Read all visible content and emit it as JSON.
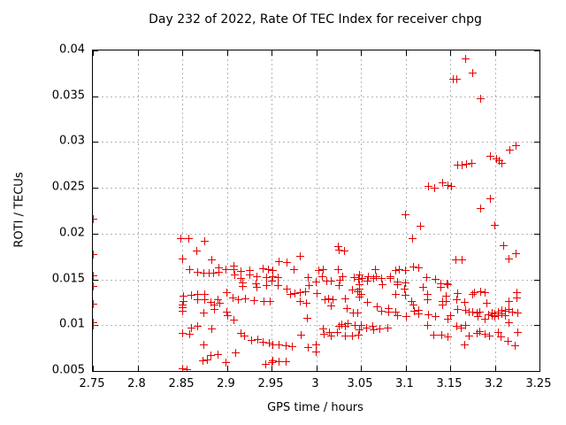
{
  "page": {
    "background": "#ffffff",
    "text_color": "#000000"
  },
  "chart_data": {
    "type": "scatter",
    "title": "Day 232 of 2022, Rate Of TEC Index for receiver chpg",
    "xlabel": "GPS time / hours",
    "ylabel": "ROTI / TECUs",
    "xlim": [
      2.75,
      3.25
    ],
    "ylim": [
      0.005,
      0.04
    ],
    "x_ticks": [
      2.75,
      2.8,
      2.85,
      2.9,
      2.95,
      3.0,
      3.05,
      3.1,
      3.15,
      3.2,
      3.25
    ],
    "x_tick_labels": [
      "2.75",
      "2.8",
      "2.85",
      "2.9",
      "2.95",
      "3",
      "3.05",
      "3.1",
      "3.15",
      "3.2",
      "3.25"
    ],
    "y_ticks": [
      0.005,
      0.01,
      0.015,
      0.02,
      0.025,
      0.03,
      0.035,
      0.04
    ],
    "y_tick_labels": [
      "0.005",
      "0.01",
      "0.015",
      "0.02",
      "0.025",
      "0.03",
      "0.035",
      "0.04"
    ],
    "grid": true,
    "legend": "none",
    "marker": "plus",
    "marker_color": "#e60000",
    "grid_color": "#b4b4b4",
    "series": [
      {
        "name": "ROTI",
        "points": [
          [
            2.75,
            0.0216
          ],
          [
            2.75,
            0.0177
          ],
          [
            2.75,
            0.0154
          ],
          [
            2.75,
            0.0142
          ],
          [
            2.75,
            0.0123
          ],
          [
            2.75,
            0.0103
          ],
          [
            2.75,
            0.01
          ],
          [
            2.849,
            0.0195
          ],
          [
            2.857,
            0.0195
          ],
          [
            2.875,
            0.0192
          ],
          [
            2.866,
            0.0181
          ],
          [
            2.85,
            0.0172
          ],
          [
            2.883,
            0.0171
          ],
          [
            2.858,
            0.0161
          ],
          [
            2.867,
            0.0158
          ],
          [
            2.874,
            0.0157
          ],
          [
            2.88,
            0.0157
          ],
          [
            2.885,
            0.0157
          ],
          [
            2.891,
            0.0163
          ],
          [
            2.891,
            0.0158
          ],
          [
            2.899,
            0.0161
          ],
          [
            2.908,
            0.0165
          ],
          [
            2.908,
            0.0161
          ],
          [
            2.909,
            0.0155
          ],
          [
            2.916,
            0.0159
          ],
          [
            2.926,
            0.016
          ],
          [
            2.926,
            0.0155
          ],
          [
            2.934,
            0.0153
          ],
          [
            2.941,
            0.0162
          ],
          [
            2.947,
            0.0161
          ],
          [
            2.945,
            0.0152
          ],
          [
            2.916,
            0.0151
          ],
          [
            2.918,
            0.0146
          ],
          [
            2.918,
            0.0142
          ],
          [
            2.933,
            0.0145
          ],
          [
            2.934,
            0.0141
          ],
          [
            2.945,
            0.0143
          ],
          [
            2.851,
            0.0132
          ],
          [
            2.851,
            0.0126
          ],
          [
            2.85,
            0.0122
          ],
          [
            2.85,
            0.0119
          ],
          [
            2.85,
            0.0115
          ],
          [
            2.86,
            0.0133
          ],
          [
            2.867,
            0.0134
          ],
          [
            2.875,
            0.0134
          ],
          [
            2.867,
            0.0128
          ],
          [
            2.875,
            0.0128
          ],
          [
            2.882,
            0.0125
          ],
          [
            2.89,
            0.0128
          ],
          [
            2.892,
            0.0124
          ],
          [
            2.9,
            0.0136
          ],
          [
            2.907,
            0.013
          ],
          [
            2.913,
            0.0128
          ],
          [
            2.921,
            0.0129
          ],
          [
            2.931,
            0.0127
          ],
          [
            2.942,
            0.0126
          ],
          [
            2.949,
            0.0126
          ],
          [
            2.874,
            0.0113
          ],
          [
            2.886,
            0.0117
          ],
          [
            2.886,
            0.0122
          ],
          [
            2.9,
            0.0114
          ],
          [
            2.901,
            0.011
          ],
          [
            2.908,
            0.0106
          ],
          [
            2.86,
            0.0097
          ],
          [
            2.867,
            0.0099
          ],
          [
            2.85,
            0.0091
          ],
          [
            2.858,
            0.009
          ],
          [
            2.883,
            0.0096
          ],
          [
            2.916,
            0.0091
          ],
          [
            2.92,
            0.0088
          ],
          [
            2.928,
            0.0083
          ],
          [
            2.935,
            0.0084
          ],
          [
            2.941,
            0.0081
          ],
          [
            2.948,
            0.008
          ],
          [
            2.874,
            0.0079
          ],
          [
            2.882,
            0.0067
          ],
          [
            2.89,
            0.0068
          ],
          [
            2.878,
            0.0062
          ],
          [
            2.873,
            0.0061
          ],
          [
            2.899,
            0.0059
          ],
          [
            2.91,
            0.007
          ],
          [
            2.85,
            0.0052
          ],
          [
            2.855,
            0.0051
          ],
          [
            2.944,
            0.0057
          ],
          [
            2.95,
            0.0059
          ],
          [
            2.982,
            0.0175
          ],
          [
            2.958,
            0.0169
          ],
          [
            2.967,
            0.0168
          ],
          [
            2.975,
            0.0161
          ],
          [
            2.951,
            0.016
          ],
          [
            2.951,
            0.0153
          ],
          [
            2.95,
            0.0148
          ],
          [
            2.957,
            0.0152
          ],
          [
            2.957,
            0.0143
          ],
          [
            2.967,
            0.0139
          ],
          [
            2.971,
            0.0134
          ],
          [
            2.976,
            0.0135
          ],
          [
            2.982,
            0.0136
          ],
          [
            2.988,
            0.0137
          ],
          [
            2.982,
            0.0126
          ],
          [
            2.989,
            0.0124
          ],
          [
            2.991,
            0.0152
          ],
          [
            2.992,
            0.0143
          ],
          [
            3.0,
            0.0147
          ],
          [
            3.001,
            0.0135
          ],
          [
            3.003,
            0.016
          ],
          [
            3.008,
            0.0161
          ],
          [
            3.007,
            0.0153
          ],
          [
            3.012,
            0.0148
          ],
          [
            3.01,
            0.0128
          ],
          [
            3.014,
            0.0129
          ],
          [
            3.017,
            0.0148
          ],
          [
            3.017,
            0.0121
          ],
          [
            3.019,
            0.0128
          ],
          [
            3.025,
            0.0161
          ],
          [
            3.026,
            0.0143
          ],
          [
            3.027,
            0.0149
          ],
          [
            3.03,
            0.0153
          ],
          [
            3.033,
            0.0129
          ],
          [
            3.035,
            0.0118
          ],
          [
            3.041,
            0.0138
          ],
          [
            3.043,
            0.0152
          ],
          [
            3.047,
            0.0137
          ],
          [
            3.048,
            0.015
          ],
          [
            3.051,
            0.0151
          ],
          [
            3.042,
            0.0113
          ],
          [
            3.047,
            0.0113
          ],
          [
            2.99,
            0.0108
          ],
          [
            2.983,
            0.0089
          ],
          [
            2.951,
            0.0079
          ],
          [
            2.958,
            0.0079
          ],
          [
            2.966,
            0.0078
          ],
          [
            2.973,
            0.0077
          ],
          [
            2.991,
            0.0076
          ],
          [
            3.0,
            0.0079
          ],
          [
            3.0,
            0.0071
          ],
          [
            2.951,
            0.0061
          ],
          [
            2.958,
            0.006
          ],
          [
            2.966,
            0.006
          ],
          [
            3.008,
            0.0096
          ],
          [
            3.009,
            0.009
          ],
          [
            3.015,
            0.0092
          ],
          [
            3.017,
            0.0088
          ],
          [
            3.024,
            0.0092
          ],
          [
            3.026,
            0.0099
          ],
          [
            3.033,
            0.0099
          ],
          [
            3.033,
            0.0088
          ],
          [
            3.041,
            0.0088
          ],
          [
            3.048,
            0.0089
          ],
          [
            3.029,
            0.0101
          ],
          [
            3.036,
            0.0102
          ],
          [
            3.044,
            0.01
          ],
          [
            3.025,
            0.0186
          ],
          [
            3.026,
            0.0182
          ],
          [
            3.032,
            0.0181
          ],
          [
            3.066,
            0.0161
          ],
          [
            3.089,
            0.016
          ],
          [
            3.093,
            0.0161
          ],
          [
            3.1,
            0.016
          ],
          [
            3.109,
            0.0164
          ],
          [
            3.115,
            0.0163
          ],
          [
            3.049,
            0.0155
          ],
          [
            3.058,
            0.0153
          ],
          [
            3.057,
            0.0148
          ],
          [
            3.064,
            0.0151
          ],
          [
            3.067,
            0.0153
          ],
          [
            3.073,
            0.0151
          ],
          [
            3.074,
            0.0144
          ],
          [
            3.083,
            0.0153
          ],
          [
            3.083,
            0.0151
          ],
          [
            3.091,
            0.0147
          ],
          [
            3.091,
            0.0144
          ],
          [
            3.1,
            0.0146
          ],
          [
            3.099,
            0.0139
          ],
          [
            3.049,
            0.0144
          ],
          [
            3.049,
            0.0139
          ],
          [
            3.05,
            0.0134
          ],
          [
            3.057,
            0.0125
          ],
          [
            3.068,
            0.012
          ],
          [
            3.073,
            0.0115
          ],
          [
            3.081,
            0.0118
          ],
          [
            3.081,
            0.0114
          ],
          [
            3.089,
            0.0134
          ],
          [
            3.089,
            0.0114
          ],
          [
            3.091,
            0.011
          ],
          [
            3.1,
            0.0133
          ],
          [
            3.101,
            0.0109
          ],
          [
            3.107,
            0.0126
          ],
          [
            3.109,
            0.0122
          ],
          [
            3.11,
            0.0115
          ],
          [
            3.115,
            0.0116
          ],
          [
            3.115,
            0.0112
          ],
          [
            3.12,
            0.0141
          ],
          [
            3.124,
            0.0152
          ],
          [
            3.125,
            0.0134
          ],
          [
            3.125,
            0.0128
          ],
          [
            3.126,
            0.0111
          ],
          [
            3.125,
            0.01
          ],
          [
            3.134,
            0.015
          ],
          [
            3.134,
            0.0109
          ],
          [
            3.132,
            0.0089
          ],
          [
            3.14,
            0.0145
          ],
          [
            3.14,
            0.0141
          ],
          [
            3.141,
            0.0089
          ],
          [
            3.142,
            0.0126
          ],
          [
            3.142,
            0.0122
          ],
          [
            3.147,
            0.0145
          ],
          [
            3.146,
            0.0132
          ],
          [
            3.146,
            0.0126
          ],
          [
            3.148,
            0.0144
          ],
          [
            3.148,
            0.0107
          ],
          [
            3.15,
            0.011
          ],
          [
            3.148,
            0.0087
          ],
          [
            3.049,
            0.0131
          ],
          [
            3.05,
            0.01
          ],
          [
            3.049,
            0.0095
          ],
          [
            3.056,
            0.0097
          ],
          [
            3.063,
            0.0099
          ],
          [
            3.064,
            0.0095
          ],
          [
            3.071,
            0.0096
          ],
          [
            3.08,
            0.0097
          ],
          [
            3.126,
            0.0252
          ],
          [
            3.133,
            0.025
          ],
          [
            3.142,
            0.0255
          ],
          [
            3.148,
            0.0253
          ],
          [
            3.151,
            0.0252
          ],
          [
            3.1,
            0.0221
          ],
          [
            3.117,
            0.0208
          ],
          [
            3.108,
            0.0195
          ],
          [
            3.156,
            0.0171
          ],
          [
            3.163,
            0.0171
          ],
          [
            3.216,
            0.0172
          ],
          [
            3.224,
            0.0178
          ],
          [
            3.158,
            0.0135
          ],
          [
            3.157,
            0.0128
          ],
          [
            3.166,
            0.0125
          ],
          [
            3.175,
            0.0134
          ],
          [
            3.177,
            0.0136
          ],
          [
            3.184,
            0.0137
          ],
          [
            3.189,
            0.0136
          ],
          [
            3.191,
            0.0124
          ],
          [
            3.167,
            0.0116
          ],
          [
            3.158,
            0.0117
          ],
          [
            3.171,
            0.0114
          ],
          [
            3.175,
            0.0114
          ],
          [
            3.18,
            0.0113
          ],
          [
            3.183,
            0.0114
          ],
          [
            3.181,
            0.0109
          ],
          [
            3.189,
            0.0107
          ],
          [
            3.193,
            0.0111
          ],
          [
            3.197,
            0.011
          ],
          [
            3.197,
            0.0113
          ],
          [
            3.2,
            0.0112
          ],
          [
            3.2,
            0.0109
          ],
          [
            3.204,
            0.0114
          ],
          [
            3.204,
            0.011
          ],
          [
            3.208,
            0.0116
          ],
          [
            3.208,
            0.0112
          ],
          [
            3.212,
            0.0115
          ],
          [
            3.212,
            0.011
          ],
          [
            3.216,
            0.0117
          ],
          [
            3.216,
            0.0103
          ],
          [
            3.22,
            0.0114
          ],
          [
            3.226,
            0.0113
          ],
          [
            3.157,
            0.0099
          ],
          [
            3.162,
            0.0097
          ],
          [
            3.167,
            0.01
          ],
          [
            3.171,
            0.0088
          ],
          [
            3.18,
            0.0091
          ],
          [
            3.183,
            0.0093
          ],
          [
            3.189,
            0.009
          ],
          [
            3.194,
            0.0088
          ],
          [
            3.204,
            0.0092
          ],
          [
            3.207,
            0.0087
          ],
          [
            3.215,
            0.0082
          ],
          [
            3.223,
            0.0078
          ],
          [
            3.226,
            0.0092
          ],
          [
            3.166,
            0.0079
          ],
          [
            3.225,
            0.0136
          ],
          [
            3.216,
            0.0126
          ],
          [
            3.225,
            0.013
          ],
          [
            3.217,
            0.0291
          ],
          [
            3.224,
            0.0296
          ],
          [
            3.195,
            0.0284
          ],
          [
            3.202,
            0.0282
          ],
          [
            3.205,
            0.028
          ],
          [
            3.208,
            0.0277
          ],
          [
            3.158,
            0.0275
          ],
          [
            3.163,
            0.0275
          ],
          [
            3.168,
            0.0276
          ],
          [
            3.174,
            0.0277
          ],
          [
            3.195,
            0.0238
          ],
          [
            3.184,
            0.0227
          ],
          [
            3.2,
            0.0209
          ],
          [
            3.21,
            0.0187
          ],
          [
            3.167,
            0.0391
          ],
          [
            3.175,
            0.0375
          ],
          [
            3.153,
            0.0369
          ],
          [
            3.157,
            0.0369
          ],
          [
            3.184,
            0.0347
          ]
        ]
      }
    ]
  }
}
